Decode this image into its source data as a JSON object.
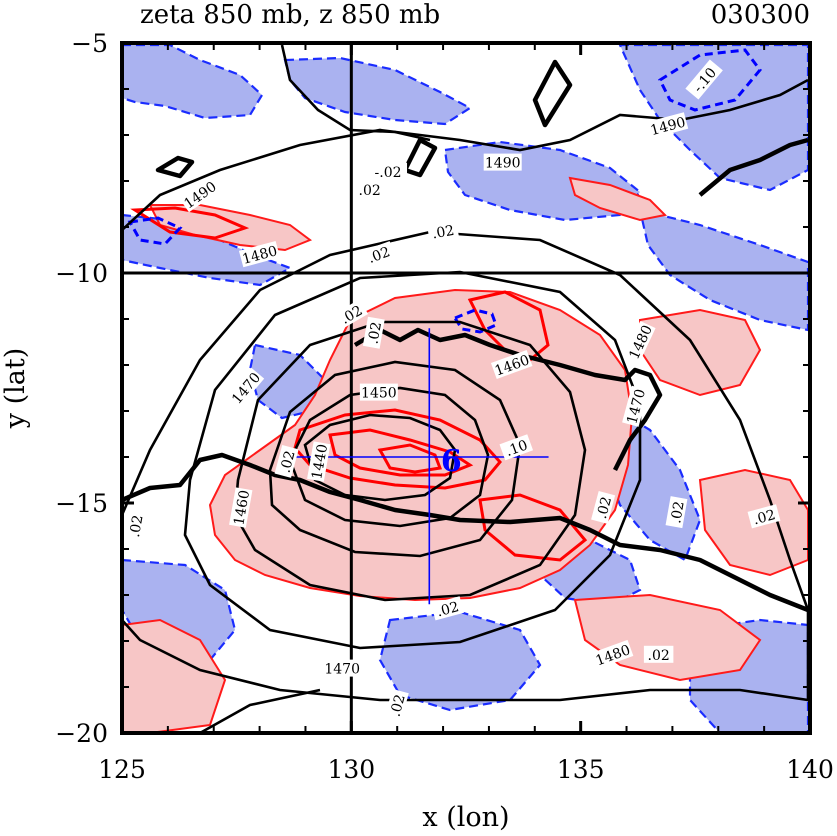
{
  "chart_data": {
    "type": "contour",
    "title_left": "zeta 850 mb, z 850 mb",
    "title_right": "030300",
    "xlabel": "x (lon)",
    "ylabel": "y (lat)",
    "xlim": [
      125,
      140
    ],
    "ylim": [
      -20,
      -5
    ],
    "x_tick_labels": [
      "125",
      "130",
      "135",
      "140"
    ],
    "y_tick_labels": [
      "−5",
      "−10",
      "−15",
      "−20"
    ],
    "reference_lines": {
      "lon": 130,
      "lat": -10
    },
    "center_marker": {
      "lon": 131.7,
      "lat": -14.0,
      "symbol": "6",
      "cross_lon_range": [
        128.5,
        134.3
      ],
      "cross_lat_range": [
        -17.2,
        -11.2
      ]
    },
    "z_contours": [
      {
        "level": 1490,
        "labels": [
          {
            "text": "1490",
            "lon": 126.7,
            "lat": -8.3,
            "rot": -35
          },
          {
            "text": "1490",
            "lon": 133.3,
            "lat": -7.6,
            "rot": 0
          },
          {
            "text": "1490",
            "lon": 136.9,
            "lat": -6.8,
            "rot": -15
          }
        ]
      },
      {
        "level": 1480,
        "labels": [
          {
            "text": "1480",
            "lon": 128.0,
            "lat": -9.6,
            "rot": -15
          },
          {
            "text": "1480",
            "lon": 136.3,
            "lat": -11.5,
            "rot": -65
          },
          {
            "text": "1480",
            "lon": 135.7,
            "lat": -18.3,
            "rot": -20
          }
        ]
      },
      {
        "level": 1470,
        "labels": [
          {
            "text": "1470",
            "lon": 127.7,
            "lat": -12.5,
            "rot": -50
          },
          {
            "text": "1470",
            "lon": 129.8,
            "lat": -18.6,
            "rot": 0
          },
          {
            "text": "1470",
            "lon": 136.2,
            "lat": -12.9,
            "rot": -75
          }
        ]
      },
      {
        "level": 1460,
        "labels": [
          {
            "text": "1460",
            "lon": 127.6,
            "lat": -15.1,
            "rot": -80
          },
          {
            "text": "1460",
            "lon": 133.5,
            "lat": -12.0,
            "rot": -20
          }
        ]
      },
      {
        "level": 1450,
        "labels": [
          {
            "text": "1450",
            "lon": 130.6,
            "lat": -12.6,
            "rot": 0
          }
        ]
      },
      {
        "level": 1440,
        "labels": [
          {
            "text": "1440",
            "lon": 129.3,
            "lat": -14.1,
            "rot": -80
          }
        ]
      }
    ],
    "zeta_contours": {
      "positive_color": "#ff0000",
      "negative_color": "#0000ff",
      "positive_fill": "#f7c6c6",
      "negative_fill": "#aab2f0",
      "labels": [
        {
          "text": ".02",
          "lon": 128.6,
          "lat": -14.1,
          "rot": -75
        },
        {
          "text": ".02",
          "lon": 130.4,
          "lat": -8.2,
          "rot": 0
        },
        {
          "text": ".02",
          "lon": 132.0,
          "lat": -9.1,
          "rot": -10
        },
        {
          "text": ".02",
          "lon": 130.6,
          "lat": -9.6,
          "rot": -20
        },
        {
          "text": ".02",
          "lon": 130.0,
          "lat": -10.9,
          "rot": -30
        },
        {
          "text": ".02",
          "lon": 130.5,
          "lat": -11.3,
          "rot": -80
        },
        {
          "text": ".02",
          "lon": 132.1,
          "lat": -17.3,
          "rot": -15
        },
        {
          "text": ".02",
          "lon": 136.7,
          "lat": -18.3,
          "rot": 0
        },
        {
          "text": ".02",
          "lon": 137.1,
          "lat": -15.2,
          "rot": -80
        },
        {
          "text": ".02",
          "lon": 139.0,
          "lat": -15.3,
          "rot": -15
        },
        {
          "text": ".02",
          "lon": 135.5,
          "lat": -15.1,
          "rot": -75
        },
        {
          "text": ".02",
          "lon": 125.3,
          "lat": -15.5,
          "rot": -80
        },
        {
          "text": ".02",
          "lon": 131.0,
          "lat": -19.4,
          "rot": -75
        },
        {
          "text": ".10",
          "lon": 133.6,
          "lat": -13.8,
          "rot": -20
        },
        {
          "text": "-.10",
          "lon": 137.7,
          "lat": -5.8,
          "rot": -50
        },
        {
          "text": "-.02",
          "lon": 130.8,
          "lat": -7.8,
          "rot": 0
        }
      ]
    }
  }
}
